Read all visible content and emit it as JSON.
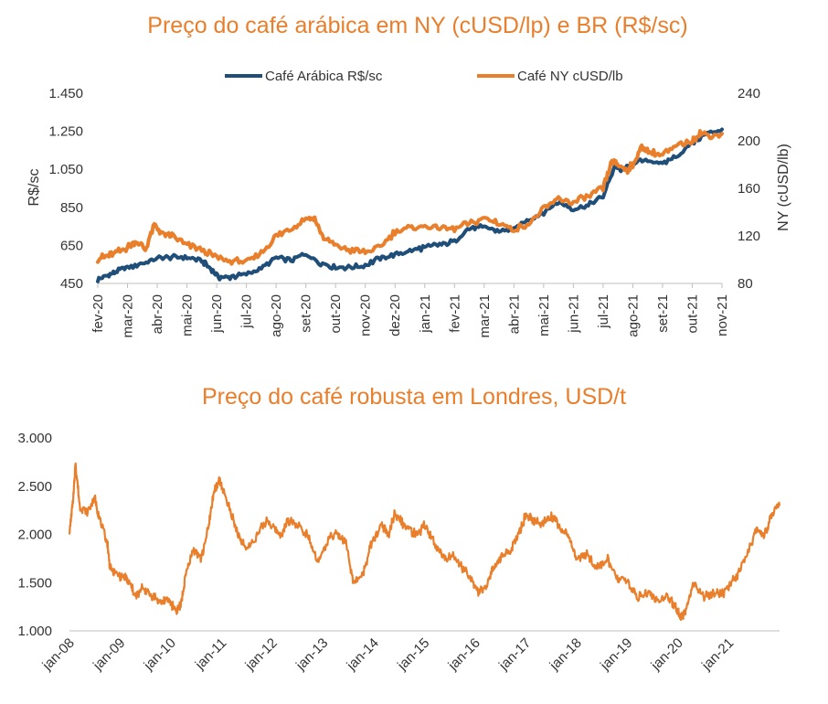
{
  "colors": {
    "orange": "#E97E2B",
    "navy": "#1F4E79",
    "axis": "#BFBFBF",
    "text": "#333333"
  },
  "chart_data": [
    {
      "type": "line",
      "title": "Preço do café arábica em NY (cUSD/lp) e BR (R$/sc)",
      "ylabel_left": "R$/sc",
      "ylabel_right": "NY (cUSD/lb)",
      "legend_position": "top",
      "ylim_left": [
        450,
        1450
      ],
      "ylim_right": [
        80,
        240
      ],
      "yticks_left": [
        "450",
        "650",
        "850",
        "1.050",
        "1.250",
        "1.450"
      ],
      "yticks_right": [
        "80",
        "120",
        "160",
        "200",
        "240"
      ],
      "categories": [
        "fev-20",
        "mar-20",
        "abr-20",
        "mai-20",
        "jun-20",
        "jul-20",
        "ago-20",
        "set-20",
        "out-20",
        "nov-20",
        "dez-20",
        "jan-21",
        "fev-21",
        "mar-21",
        "abr-21",
        "mai-21",
        "jun-21",
        "jul-21",
        "ago-21",
        "set-21",
        "out-21",
        "nov-21"
      ],
      "series": [
        {
          "name": "Café Arábica R$/sc",
          "axis": "left",
          "color": "#1F4E79",
          "x": [
            0,
            0.3,
            0.6,
            1,
            1.5,
            2,
            2.5,
            3,
            3.5,
            3.8,
            4.1,
            4.5,
            5,
            5.5,
            6,
            6.5,
            7,
            7.5,
            8,
            8.5,
            9,
            9.5,
            10,
            10.5,
            11,
            11.5,
            12,
            12.5,
            13,
            13.5,
            14,
            14.5,
            15,
            15.5,
            16,
            16.5,
            17,
            17.4,
            17.6,
            18,
            18.5,
            19,
            19.5,
            20,
            20.5,
            21
          ],
          "y": [
            470,
            490,
            510,
            535,
            555,
            580,
            590,
            585,
            570,
            525,
            480,
            485,
            500,
            530,
            585,
            570,
            605,
            555,
            535,
            535,
            545,
            585,
            600,
            620,
            640,
            655,
            670,
            740,
            745,
            725,
            735,
            785,
            825,
            880,
            840,
            860,
            905,
            1070,
            1040,
            1080,
            1100,
            1080,
            1120,
            1190,
            1240,
            1260
          ]
        },
        {
          "name": "Café NY cUSD/lb",
          "axis": "right",
          "color": "#E97E2B",
          "x": [
            0,
            0.3,
            0.6,
            1,
            1.3,
            1.6,
            1.9,
            2.2,
            2.5,
            3,
            3.5,
            4,
            4.5,
            5,
            5.5,
            6,
            6.5,
            7,
            7.3,
            7.6,
            8,
            8.5,
            9,
            9.5,
            10,
            10.5,
            11,
            11.5,
            12,
            12.5,
            13,
            13.5,
            14,
            14.5,
            15,
            15.5,
            16,
            16.5,
            17,
            17.3,
            17.5,
            17.8,
            18,
            18.3,
            18.6,
            19,
            19.5,
            20,
            20.3,
            20.6,
            21
          ],
          "y": [
            101,
            103,
            106,
            110,
            116,
            108,
            130,
            121,
            120,
            112,
            108,
            102,
            99,
            98,
            106,
            120,
            126,
            135,
            134,
            118,
            112,
            108,
            106,
            110,
            124,
            127,
            128,
            127,
            126,
            130,
            135,
            131,
            125,
            130,
            142,
            151,
            148,
            153,
            160,
            182,
            180,
            175,
            180,
            195,
            190,
            188,
            196,
            200,
            207,
            204,
            206
          ]
        }
      ]
    },
    {
      "type": "line",
      "title": "Preço do café robusta em Londres, USD/t",
      "ylim": [
        1000,
        3000
      ],
      "yticks": [
        "1.000",
        "1.500",
        "2.000",
        "2.500",
        "3.000"
      ],
      "categories": [
        "jan-08",
        "jan-09",
        "jan-10",
        "jan-11",
        "jan-12",
        "jan-13",
        "jan-14",
        "jan-15",
        "jan-16",
        "jan-17",
        "jan-18",
        "jan-19",
        "jan-20",
        "jan-21"
      ],
      "series": [
        {
          "color": "#E97E2B",
          "x": [
            0,
            0.08,
            0.12,
            0.2,
            0.35,
            0.5,
            0.6,
            0.75,
            0.8,
            0.9,
            1.1,
            1.2,
            1.3,
            1.45,
            1.6,
            1.8,
            1.95,
            2.1,
            2.2,
            2.3,
            2.45,
            2.6,
            2.75,
            2.85,
            2.95,
            3.0,
            3.2,
            3.35,
            3.5,
            3.7,
            3.9,
            4.05,
            4.2,
            4.3,
            4.5,
            4.7,
            4.9,
            5.1,
            5.25,
            5.45,
            5.6,
            5.8,
            5.95,
            6.15,
            6.3,
            6.4,
            6.5,
            6.7,
            6.85,
            7.0,
            7.2,
            7.4,
            7.55,
            7.75,
            7.9,
            8.05,
            8.2,
            8.35,
            8.5,
            8.7,
            8.85,
            9.0,
            9.15,
            9.3,
            9.5,
            9.7,
            9.85,
            10.0,
            10.2,
            10.4,
            10.6,
            10.8,
            11.0,
            11.2,
            11.4,
            11.6,
            11.8,
            11.95,
            12.05,
            12.15,
            12.3,
            12.5,
            12.7,
            12.9,
            13.05,
            13.2,
            13.45,
            13.55,
            13.7,
            13.85,
            14.0
          ],
          "y": [
            2020,
            2400,
            2740,
            2300,
            2220,
            2380,
            2150,
            1900,
            1650,
            1600,
            1550,
            1480,
            1350,
            1450,
            1380,
            1300,
            1330,
            1210,
            1280,
            1600,
            1850,
            1750,
            2100,
            2450,
            2550,
            2500,
            2200,
            1950,
            1850,
            2000,
            2150,
            2050,
            2000,
            2150,
            2100,
            2000,
            1700,
            1950,
            2000,
            1900,
            1480,
            1600,
            1900,
            2100,
            2000,
            2200,
            2150,
            2050,
            2000,
            2100,
            1900,
            1750,
            1800,
            1650,
            1550,
            1400,
            1450,
            1650,
            1750,
            1850,
            2000,
            2200,
            2150,
            2100,
            2200,
            2050,
            1980,
            1750,
            1800,
            1650,
            1750,
            1550,
            1500,
            1350,
            1400,
            1300,
            1350,
            1250,
            1150,
            1200,
            1500,
            1350,
            1400,
            1380,
            1500,
            1600,
            1900,
            2050,
            2000,
            2200,
            2300
          ]
        }
      ]
    }
  ]
}
